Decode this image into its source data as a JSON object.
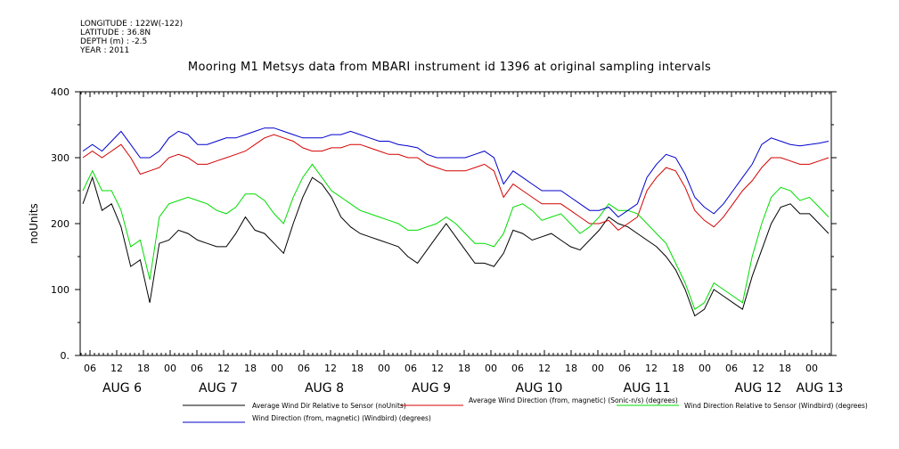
{
  "header": {
    "longitude": "LONGITUDE : 122W(-122)",
    "latitude": "LATITUDE : 36.8N",
    "depth": "DEPTH (m) : -2.5",
    "year": "YEAR : 2011"
  },
  "chart_data": {
    "type": "line",
    "title": "Mooring M1 Metsys data from MBARI instrument id 1396 at original sampling intervals",
    "ylabel": "noUnits",
    "ylim": [
      0,
      400
    ],
    "yticks": [
      "0.",
      "100",
      "200",
      "300",
      "400"
    ],
    "hour_ticks": [
      "06",
      "12",
      "18",
      "00",
      "06",
      "12",
      "18",
      "00",
      "06",
      "12",
      "18",
      "00",
      "06",
      "12",
      "18",
      "00",
      "06",
      "12",
      "18",
      "00",
      "06",
      "12",
      "18",
      "00",
      "06",
      "12",
      "18",
      "00",
      "06",
      "12",
      "18",
      "00"
    ],
    "day_labels": [
      "AUG 6",
      "AUG 7",
      "AUG 8",
      "AUG 9",
      "AUG 10",
      "AUG 11",
      "AUG 12",
      "AUG 13"
    ],
    "series": [
      {
        "name": "Average Wind Dir Relative to Sensor (noUnits)",
        "color": "#000000",
        "values": [
          230,
          270,
          220,
          230,
          195,
          135,
          145,
          80,
          170,
          175,
          190,
          185,
          175,
          170,
          165,
          165,
          185,
          210,
          190,
          185,
          170,
          155,
          200,
          240,
          270,
          260,
          240,
          210,
          195,
          185,
          180,
          175,
          170,
          165,
          150,
          140,
          160,
          180,
          200,
          180,
          160,
          140,
          140,
          135,
          155,
          190,
          185,
          175,
          180,
          185,
          175,
          165,
          160,
          175,
          190,
          210,
          200,
          195,
          185,
          175,
          165,
          150,
          130,
          100,
          60,
          70,
          100,
          90,
          80,
          70,
          120,
          160,
          200,
          225,
          230,
          215,
          215,
          200,
          185
        ]
      },
      {
        "name": "Average Wind Direction (from, magnetic) (Sonic-n/s) (degrees)",
        "color": "#d40000",
        "values": [
          300,
          310,
          300,
          310,
          320,
          300,
          275,
          280,
          285,
          300,
          305,
          300,
          290,
          290,
          295,
          300,
          305,
          310,
          320,
          330,
          335,
          330,
          325,
          315,
          310,
          310,
          315,
          315,
          320,
          320,
          315,
          310,
          305,
          305,
          300,
          300,
          290,
          285,
          280,
          280,
          280,
          285,
          290,
          280,
          240,
          260,
          250,
          240,
          230,
          230,
          230,
          220,
          210,
          200,
          200,
          205,
          190,
          200,
          210,
          250,
          270,
          285,
          280,
          255,
          220,
          205,
          195,
          210,
          230,
          250,
          265,
          285,
          300,
          300,
          295,
          290,
          290,
          295,
          300
        ]
      },
      {
        "name": "Wind Direction Relative to Sensor (Windbird) (degrees)",
        "color": "#00dd00",
        "values": [
          250,
          280,
          250,
          250,
          220,
          165,
          175,
          115,
          210,
          230,
          235,
          240,
          235,
          230,
          220,
          215,
          225,
          245,
          245,
          235,
          215,
          200,
          240,
          270,
          290,
          270,
          250,
          240,
          230,
          220,
          215,
          210,
          205,
          200,
          190,
          190,
          195,
          200,
          210,
          200,
          185,
          170,
          170,
          165,
          185,
          225,
          230,
          220,
          205,
          210,
          215,
          200,
          185,
          195,
          210,
          230,
          220,
          220,
          215,
          200,
          185,
          170,
          140,
          110,
          70,
          80,
          110,
          100,
          90,
          80,
          150,
          200,
          240,
          255,
          250,
          235,
          240,
          225,
          210
        ]
      },
      {
        "name": "Wind Direction (from, magnetic) (Windbird) (degrees)",
        "color": "#0000cc",
        "values": [
          310,
          320,
          310,
          325,
          340,
          320,
          300,
          300,
          310,
          330,
          340,
          335,
          320,
          320,
          325,
          330,
          330,
          335,
          340,
          345,
          345,
          340,
          335,
          330,
          330,
          330,
          335,
          335,
          340,
          335,
          330,
          325,
          325,
          320,
          318,
          315,
          305,
          300,
          300,
          300,
          300,
          305,
          310,
          300,
          260,
          280,
          270,
          260,
          250,
          250,
          250,
          240,
          230,
          220,
          220,
          225,
          210,
          220,
          230,
          270,
          290,
          305,
          300,
          275,
          240,
          225,
          215,
          230,
          250,
          270,
          290,
          320,
          330,
          325,
          320,
          318,
          320,
          322,
          325
        ]
      }
    ]
  }
}
